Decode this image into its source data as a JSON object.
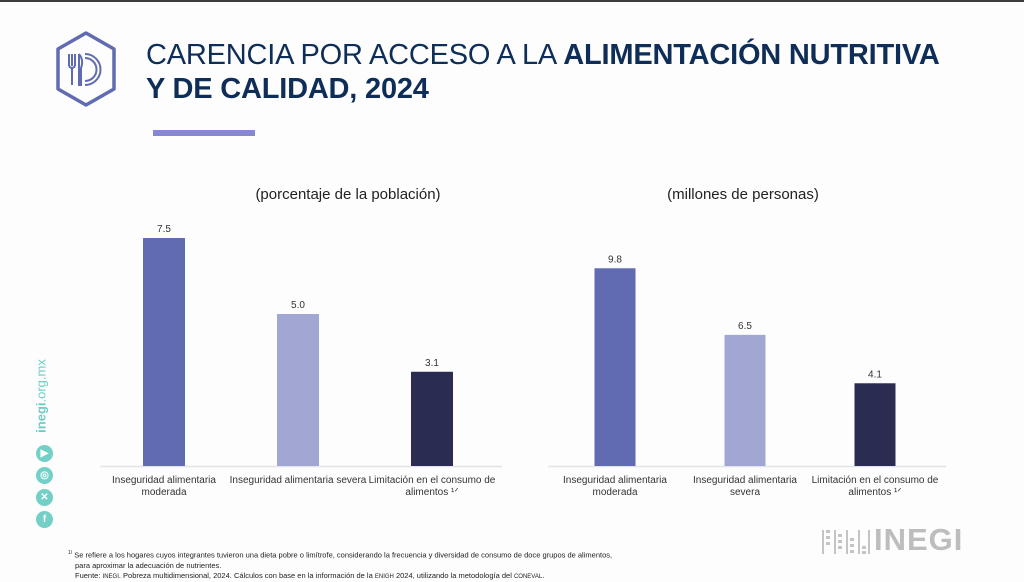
{
  "header": {
    "title_light_1": "CARENCIA POR ACCESO A LA ",
    "title_bold_1": "ALIMENTACIÓN NUTRITIVA",
    "title_bold_2": "Y DE CALIDAD, 2024",
    "icon": "plate-fork-knife-hexagon-icon"
  },
  "colors": {
    "title": "#0e2d57",
    "accent": "#8886db",
    "moderada": "#606bb1",
    "severa": "#a2a6d3",
    "limitacion": "#2b2c52",
    "social": "#73d0c6"
  },
  "chart_data": [
    {
      "type": "bar",
      "title": "(porcentaje de la población)",
      "categories": [
        "Inseguridad alimentaria moderada",
        "Inseguridad alimentaria severa",
        "Limitación en el consumo de alimentos 1/"
      ],
      "category_lines": [
        [
          "Inseguridad alimentaria",
          "moderada"
        ],
        [
          "Inseguridad alimentaria severa"
        ],
        [
          "Limitación en el consumo de",
          "alimentos ¹ᐟ"
        ]
      ],
      "values": [
        7.5,
        5.0,
        3.1
      ],
      "value_labels": [
        "7.5",
        "5.0",
        "3.1"
      ],
      "xlabel": "",
      "ylabel": "",
      "ylim": [
        0,
        7.5
      ],
      "grid": false
    },
    {
      "type": "bar",
      "title": "(millones de personas)",
      "categories": [
        "Inseguridad alimentaria moderada",
        "Inseguridad alimentaria severa",
        "Limitación en el consumo de alimentos 1/"
      ],
      "category_lines": [
        [
          "Inseguridad alimentaria",
          "moderada"
        ],
        [
          "Inseguridad alimentaria",
          "severa"
        ],
        [
          "Limitación en el consumo de",
          "alimentos ¹ᐟ"
        ]
      ],
      "values": [
        9.8,
        6.5,
        4.1
      ],
      "value_labels": [
        "9.8",
        "6.5",
        "4.1"
      ],
      "xlabel": "",
      "ylabel": "",
      "ylim": [
        0,
        11.3
      ],
      "grid": false
    }
  ],
  "sidebar": {
    "site_prefix": "inegi",
    "site_suffix": ".org.mx",
    "social": [
      {
        "name": "youtube",
        "glyph": "▶"
      },
      {
        "name": "instagram",
        "glyph": "◎"
      },
      {
        "name": "x",
        "glyph": "✕"
      },
      {
        "name": "facebook",
        "glyph": "f"
      }
    ]
  },
  "footnote": {
    "marker": "1/",
    "line1": " Se refiere a los hogares cuyos integrantes tuvieron una dieta pobre o limítrofe, considerando la frecuencia y diversidad de consumo de doce grupos de alimentos,",
    "line2": "para aproximar la adecuación de nutrientes.",
    "source_a": "Fuente: ",
    "source_inegi": "INEGI",
    "source_b": ". Pobreza multidimensional, 2024. Cálculos con base en la información de la ",
    "source_enigh": "ENIGH",
    "source_c": " 2024, utilizando la metodología del ",
    "source_coneval": "CONEVAL",
    "source_d": "."
  },
  "brand": {
    "name": "INEGI"
  }
}
